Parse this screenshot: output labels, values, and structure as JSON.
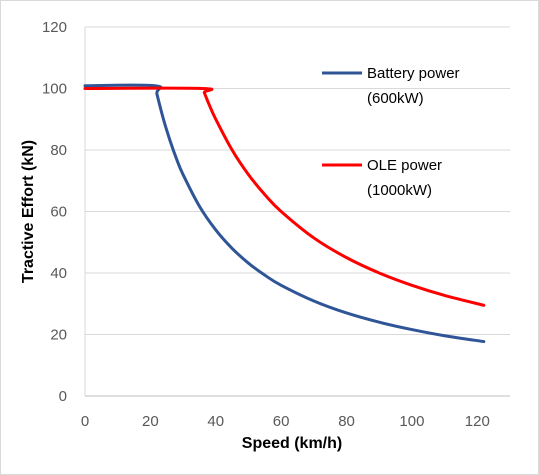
{
  "chart_data": {
    "type": "line",
    "xlabel": "Speed (km/h)",
    "ylabel": "Tractive Effort (kN)",
    "xlim": [
      0,
      130
    ],
    "ylim": [
      0,
      120
    ],
    "x_ticks": [
      0,
      20,
      40,
      60,
      80,
      100,
      120
    ],
    "y_ticks": [
      0,
      20,
      40,
      60,
      80,
      100,
      120
    ],
    "grid": "horizontal",
    "legend_position": "top-right",
    "series": [
      {
        "name_lines": [
          "Battery power",
          "(600kW)"
        ],
        "color": "#2F5597",
        "x": [
          0,
          21.4,
          22,
          24,
          26,
          28,
          30,
          35,
          40,
          45,
          50,
          55,
          60,
          70,
          80,
          90,
          100,
          110,
          122
        ],
        "y": [
          100.9,
          100.9,
          98.2,
          90.0,
          83.1,
          77.1,
          72.0,
          61.7,
          54.0,
          48.0,
          43.2,
          39.3,
          36.0,
          30.9,
          27.0,
          24.0,
          21.6,
          19.6,
          17.7
        ]
      },
      {
        "name_lines": [
          "OLE power",
          "(1000kW)"
        ],
        "color": "#FF0000",
        "x": [
          0,
          35.8,
          36.5,
          38,
          40,
          45,
          50,
          55,
          60,
          70,
          80,
          90,
          100,
          110,
          122
        ],
        "y": [
          100.0,
          100.0,
          98.6,
          94.7,
          90.0,
          80.0,
          72.0,
          65.5,
          60.0,
          51.4,
          45.0,
          40.0,
          36.0,
          32.7,
          29.5
        ]
      }
    ]
  }
}
